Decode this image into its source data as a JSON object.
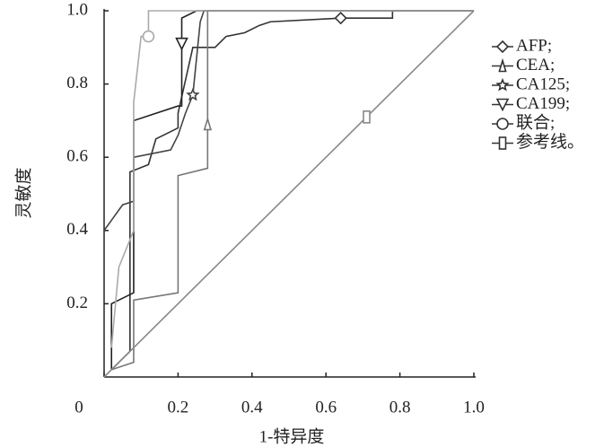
{
  "chart_data": {
    "type": "line",
    "xlabel": "1-特异度",
    "ylabel": "灵敏度",
    "xlim": [
      0,
      1
    ],
    "ylim": [
      0,
      1
    ],
    "xticks": [
      0,
      0.2,
      0.4,
      0.6,
      0.8,
      {
        "value": 1,
        "label": "1.0"
      }
    ],
    "yticks": [
      0.2,
      0.4,
      0.6,
      0.8,
      {
        "value": 1,
        "label": "1.0"
      }
    ],
    "series": [
      {
        "name": "AFP;",
        "color": "#333333",
        "x": [
          0.02,
          0.07,
          0.07,
          0.12,
          0.14,
          0.2,
          0.2,
          0.24,
          0.3,
          0.33,
          0.38,
          0.42,
          0.45,
          0.64,
          0.78,
          0.78,
          1
        ],
        "values": [
          0.02,
          0.07,
          0.56,
          0.58,
          0.65,
          0.68,
          0.72,
          0.9,
          0.9,
          0.93,
          0.94,
          0.96,
          0.97,
          0.98,
          0.98,
          1,
          1
        ]
      },
      {
        "name": "CEA;",
        "color": "#777777",
        "x": [
          0.02,
          0.08,
          0.08,
          0.2,
          0.2,
          0.28,
          0.28,
          0.28,
          1
        ],
        "values": [
          0.02,
          0.04,
          0.21,
          0.23,
          0.55,
          0.57,
          0.69,
          1,
          1
        ]
      },
      {
        "name": "CA125;",
        "color": "#444444",
        "x": [
          0,
          0.05,
          0.08,
          0.08,
          0.18,
          0.2,
          0.22,
          0.24,
          0.26,
          0.27,
          1
        ],
        "values": [
          0.4,
          0.47,
          0.48,
          0.6,
          0.62,
          0.66,
          0.72,
          0.77,
          0.97,
          1,
          1
        ]
      },
      {
        "name": "CA199;",
        "color": "#222222",
        "x": [
          0.02,
          0.02,
          0.08,
          0.08,
          0.2,
          0.21,
          0.21,
          0.21,
          0.25,
          1
        ],
        "values": [
          0.02,
          0.2,
          0.23,
          0.7,
          0.74,
          0.74,
          0.91,
          0.98,
          1,
          1
        ]
      },
      {
        "name": "联合;",
        "color": "#aaaaaa",
        "x": [
          0.02,
          0.04,
          0.08,
          0.08,
          0.1,
          0.12,
          0.12,
          1
        ],
        "values": [
          0.08,
          0.3,
          0.4,
          0.75,
          0.93,
          0.93,
          1,
          1
        ]
      },
      {
        "name": "参考线。",
        "color": "#888888",
        "x": [
          0,
          0.71,
          1
        ],
        "values": [
          0,
          0.71,
          1
        ]
      }
    ]
  }
}
